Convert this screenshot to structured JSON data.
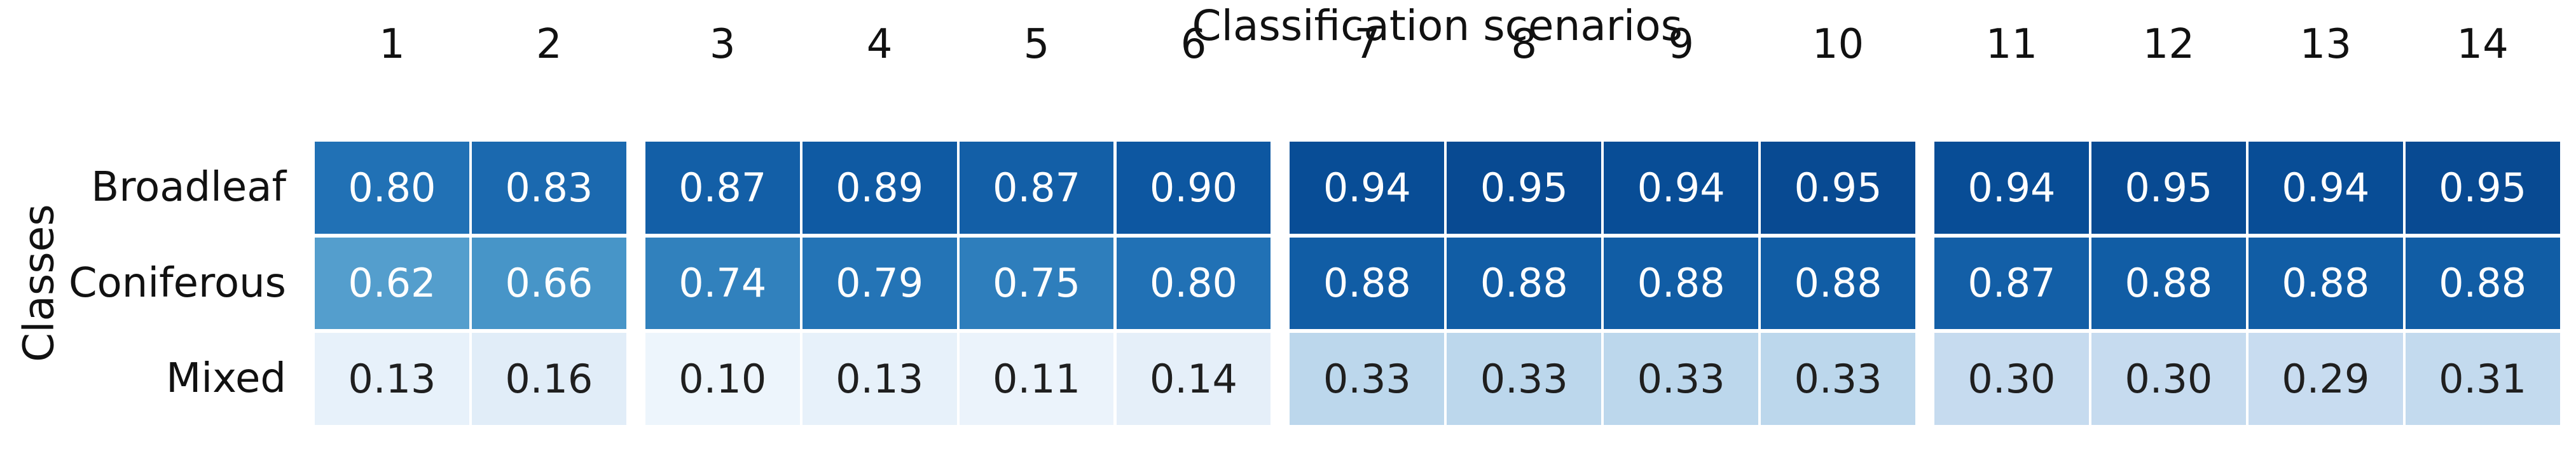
{
  "chart_data": {
    "type": "heatmap",
    "title": "Classification scenarios",
    "ylabel": "Classes",
    "x_categories": [
      "1",
      "2",
      "3",
      "4",
      "5",
      "6",
      "7",
      "8",
      "9",
      "10",
      "11",
      "12",
      "13",
      "14"
    ],
    "column_group_sizes": [
      2,
      4,
      4,
      4
    ],
    "rows": [
      "Broadleaf",
      "Coniferous",
      "Mixed"
    ],
    "series": [
      {
        "name": "Broadleaf",
        "values": [
          0.8,
          0.83,
          0.87,
          0.89,
          0.87,
          0.9,
          0.94,
          0.95,
          0.94,
          0.95,
          0.94,
          0.95,
          0.94,
          0.95
        ]
      },
      {
        "name": "Coniferous",
        "values": [
          0.62,
          0.66,
          0.74,
          0.79,
          0.75,
          0.8,
          0.88,
          0.88,
          0.88,
          0.88,
          0.87,
          0.88,
          0.88,
          0.88
        ]
      },
      {
        "name": "Mixed",
        "values": [
          0.13,
          0.16,
          0.1,
          0.13,
          0.11,
          0.14,
          0.33,
          0.33,
          0.33,
          0.33,
          0.3,
          0.3,
          0.29,
          0.31
        ]
      }
    ],
    "value_format_decimals": 2,
    "legend": "none",
    "grid": "off",
    "colormap": {
      "name": "Blues",
      "vmin": 0.05,
      "vmax": 1.05,
      "anchors": [
        {
          "t": 0.0,
          "hex": "#f7fbff"
        },
        {
          "t": 0.125,
          "hex": "#deebf7"
        },
        {
          "t": 0.25,
          "hex": "#c6dbef"
        },
        {
          "t": 0.375,
          "hex": "#9ecae1"
        },
        {
          "t": 0.5,
          "hex": "#6baed6"
        },
        {
          "t": 0.625,
          "hex": "#4292c6"
        },
        {
          "t": 0.75,
          "hex": "#2171b5"
        },
        {
          "t": 0.875,
          "hex": "#08519c"
        },
        {
          "t": 1.0,
          "hex": "#08306b"
        }
      ],
      "annot_light_text": "#ffffff",
      "annot_dark_text": "#1f1f1f"
    }
  }
}
